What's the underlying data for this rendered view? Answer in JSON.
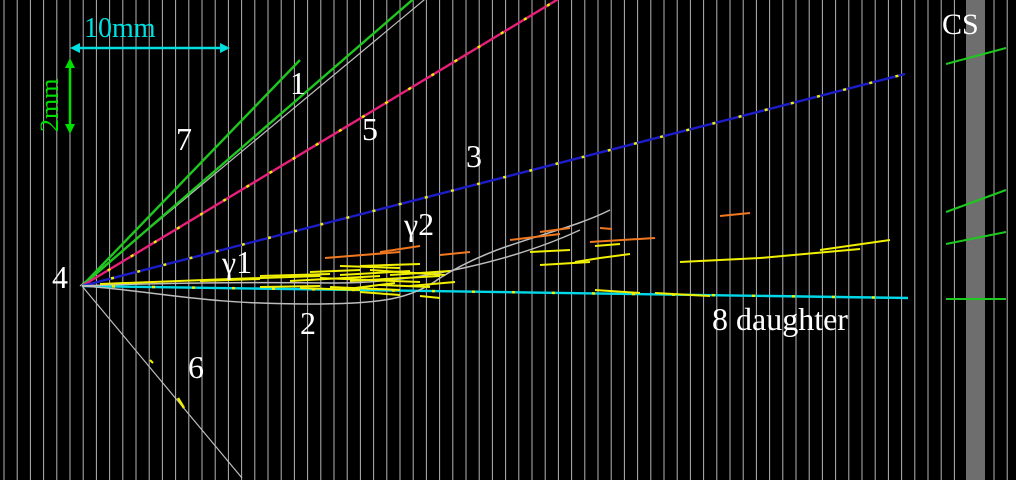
{
  "labels": {
    "scale_h": "10mm",
    "scale_v": "2mm",
    "cs": "CS",
    "vertex": "4",
    "t1": "1",
    "t2": "2",
    "t3": "3",
    "t5": "5",
    "t6": "6",
    "t7": "7",
    "t8": "8 daughter",
    "g1": "γ1",
    "g2": "γ2"
  },
  "colors": {
    "background": "#000000",
    "plate_line": "#b4b4b4",
    "cs_plate": "#6e6e6e",
    "scale_h": "#00e0e0",
    "scale_v": "#00e000",
    "track_blue": "#1c1cc8",
    "track_magenta": "#e8207a",
    "track_green": "#1ec81e",
    "track_cyan": "#00d8e8",
    "track_gray": "#bdbdbd",
    "segment_yellow": "#f0f000",
    "segment_orange": "#f07820",
    "label_text": "#ffffff"
  },
  "icons": [
    "scale-arrow-horizontal",
    "scale-arrow-vertical"
  ]
}
